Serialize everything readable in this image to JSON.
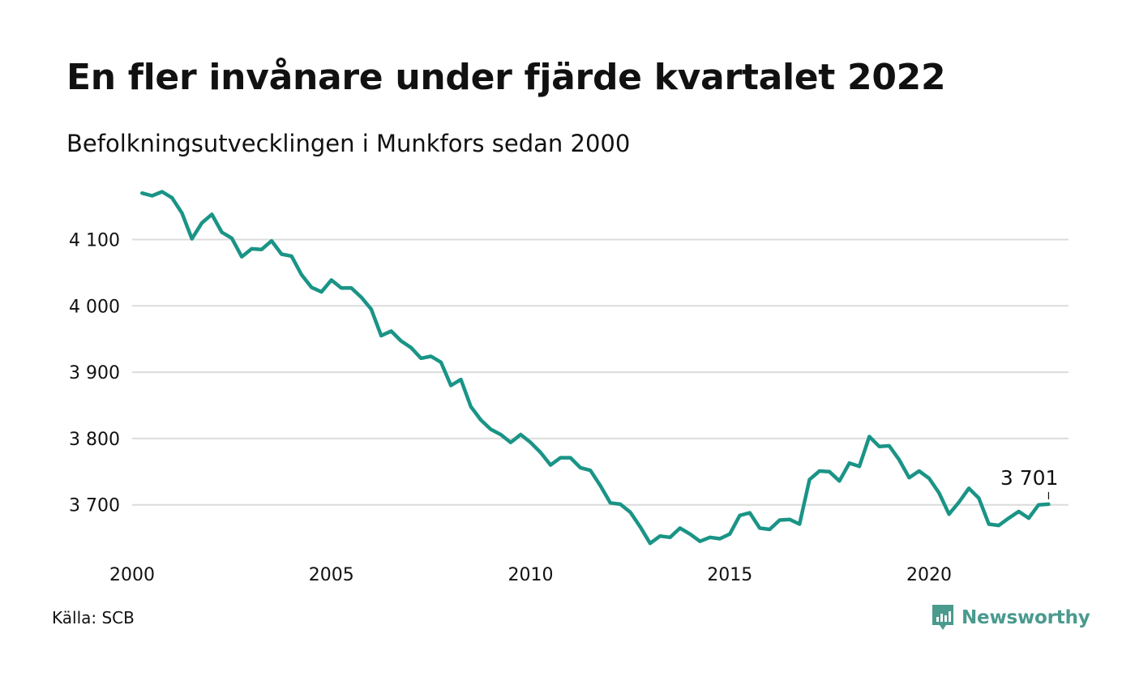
{
  "title": "En fler invånare under fjärde kvartalet 2022",
  "subtitle": "Befolkningsutvecklingen i Munkfors sedan 2000",
  "source": "Källa: SCB",
  "brand": {
    "name": "Newsworthy",
    "icon": "newsworthy-logo-icon",
    "color": "#4a9a8e"
  },
  "chart_data": {
    "type": "line",
    "title": "En fler invånare under fjärde kvartalet 2022",
    "subtitle": "Befolkningsutvecklingen i Munkfors sedan 2000",
    "xlabel": "",
    "ylabel": "",
    "x_ticks": [
      2000,
      2005,
      2010,
      2015,
      2020
    ],
    "x_tick_labels": [
      "2000",
      "2005",
      "2010",
      "2015",
      "2020"
    ],
    "y_ticks": [
      3700,
      3800,
      3900,
      4000,
      4100
    ],
    "y_tick_labels": [
      "3 700",
      "3 800",
      "3 900",
      "4 000",
      "4 100"
    ],
    "xlim": [
      2000,
      2023.5
    ],
    "ylim": [
      3630,
      4180
    ],
    "grid": "horizontal",
    "line_color": "#1a9486",
    "end_label": "3 701",
    "series": [
      {
        "name": "",
        "x": [
          2000.25,
          2000.5,
          2000.75,
          2001.0,
          2001.25,
          2001.5,
          2001.75,
          2002.0,
          2002.25,
          2002.5,
          2002.75,
          2003.0,
          2003.25,
          2003.5,
          2003.75,
          2004.0,
          2004.25,
          2004.5,
          2004.75,
          2005.0,
          2005.25,
          2005.5,
          2005.75,
          2006.0,
          2006.25,
          2006.5,
          2006.75,
          2007.0,
          2007.25,
          2007.5,
          2007.75,
          2008.0,
          2008.25,
          2008.5,
          2008.75,
          2009.0,
          2009.25,
          2009.5,
          2009.75,
          2010.0,
          2010.25,
          2010.5,
          2010.75,
          2011.0,
          2011.25,
          2011.5,
          2011.75,
          2012.0,
          2012.25,
          2012.5,
          2012.75,
          2013.0,
          2013.25,
          2013.5,
          2013.75,
          2014.0,
          2014.25,
          2014.5,
          2014.75,
          2015.0,
          2015.25,
          2015.5,
          2015.75,
          2016.0,
          2016.25,
          2016.5,
          2016.75,
          2017.0,
          2017.25,
          2017.5,
          2017.75,
          2018.0,
          2018.25,
          2018.5,
          2018.75,
          2019.0,
          2019.25,
          2019.5,
          2019.75,
          2020.0,
          2020.25,
          2020.5,
          2020.75,
          2021.0,
          2021.25,
          2021.5,
          2021.75,
          2022.0,
          2022.25,
          2022.5,
          2022.75,
          2023.0
        ],
        "values": [
          4170,
          4166,
          4172,
          4163,
          4140,
          4101,
          4125,
          4138,
          4111,
          4102,
          4074,
          4086,
          4085,
          4098,
          4078,
          4075,
          4047,
          4028,
          4021,
          4039,
          4027,
          4027,
          4013,
          3995,
          3955,
          3962,
          3947,
          3937,
          3921,
          3924,
          3915,
          3880,
          3889,
          3848,
          3828,
          3814,
          3806,
          3794,
          3806,
          3794,
          3779,
          3760,
          3771,
          3771,
          3756,
          3752,
          3729,
          3703,
          3701,
          3689,
          3667,
          3642,
          3653,
          3651,
          3665,
          3656,
          3645,
          3651,
          3649,
          3656,
          3684,
          3688,
          3665,
          3663,
          3677,
          3678,
          3671,
          3738,
          3751,
          3750,
          3736,
          3763,
          3758,
          3803,
          3788,
          3789,
          3768,
          3741,
          3751,
          3740,
          3718,
          3686,
          3704,
          3725,
          3710,
          3671,
          3669,
          3680,
          3690,
          3680,
          3700,
          3701
        ]
      }
    ]
  }
}
